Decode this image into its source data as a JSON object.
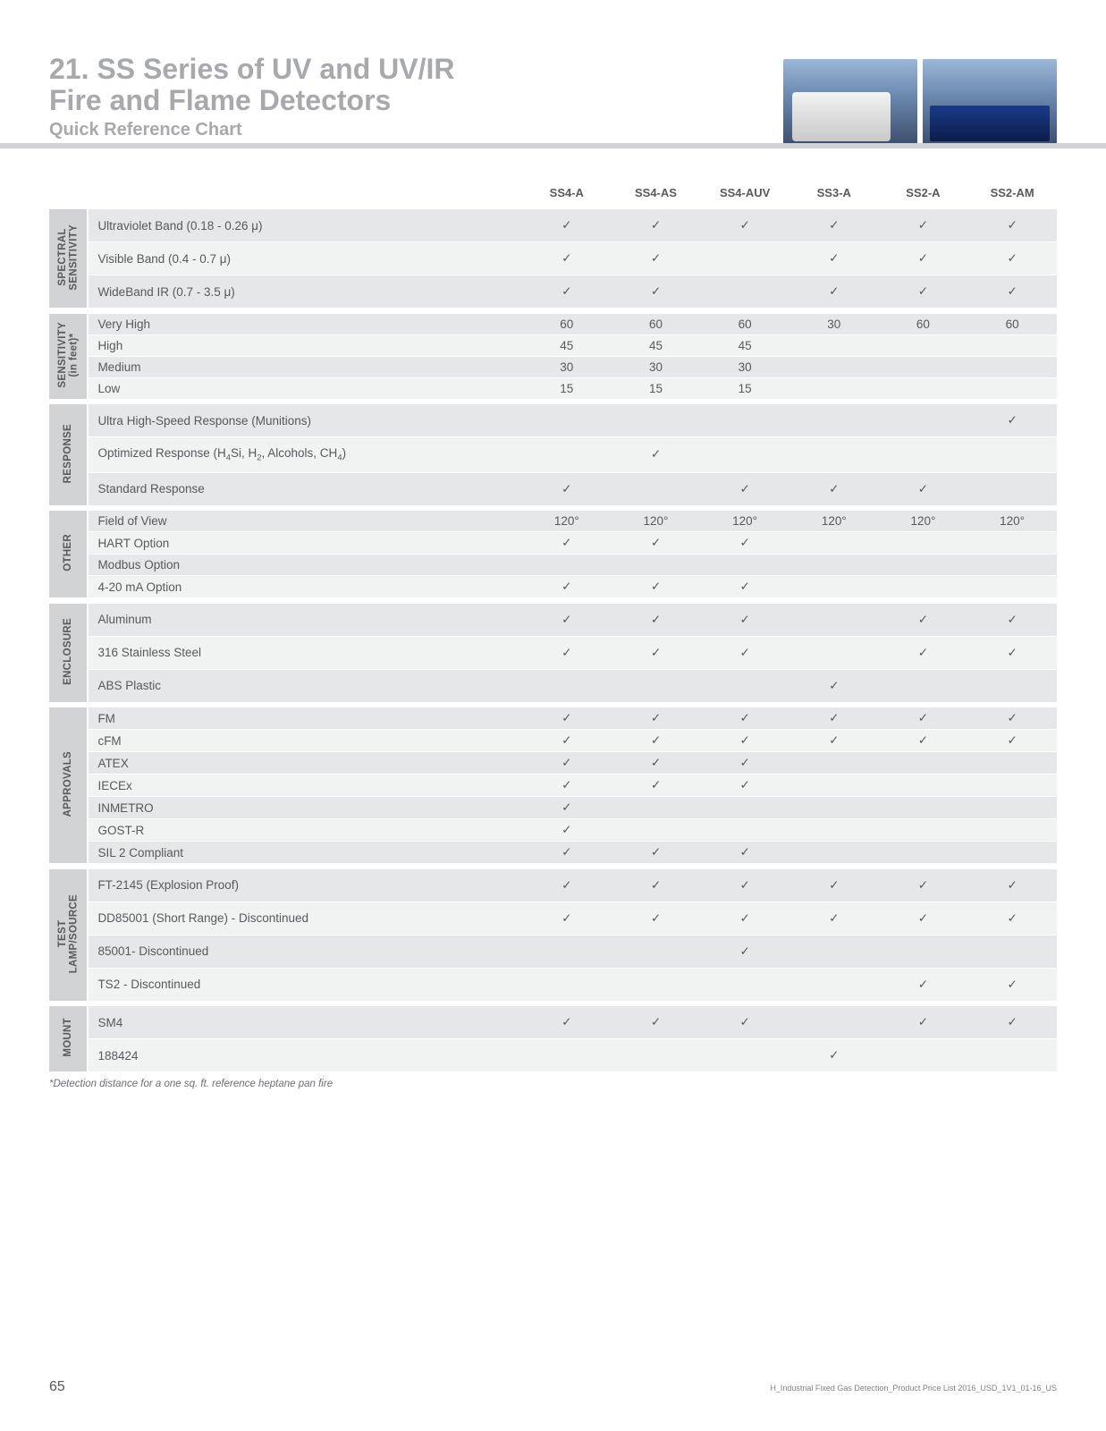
{
  "title_line1": "21. SS Series of UV and UV/IR",
  "title_line2": "Fire and Flame Detectors",
  "subtitle": "Quick Reference Chart",
  "columns": [
    "SS4-A",
    "SS4-AS",
    "SS4-AUV",
    "SS3-A",
    "SS2-A",
    "SS2-AM"
  ],
  "categories": [
    {
      "name": "SPECTRAL SENSITIVITY",
      "label_html": "SPECTRAL<br>SENSITIVITY",
      "rows": [
        {
          "label": "Ultraviolet Band (0.18 - 0.26 μ)",
          "vals": [
            "✓",
            "✓",
            "✓",
            "✓",
            "✓",
            "✓"
          ],
          "tall": true
        },
        {
          "label": "Visible Band (0.4 - 0.7 μ)",
          "vals": [
            "✓",
            "✓",
            "",
            "✓",
            "✓",
            "✓"
          ],
          "tall": true
        },
        {
          "label": "WideBand IR (0.7 - 3.5 μ)",
          "vals": [
            "✓",
            "✓",
            "",
            "✓",
            "✓",
            "✓"
          ],
          "tall": true
        }
      ]
    },
    {
      "name": "SENSITIVITY (in feet)*",
      "label_html": "SENSITIVITY<br>(in feet)*",
      "rows": [
        {
          "label": "Very High",
          "vals": [
            "60",
            "60",
            "60",
            "30",
            "60",
            "60"
          ]
        },
        {
          "label": "High",
          "vals": [
            "45",
            "45",
            "45",
            "",
            "",
            ""
          ]
        },
        {
          "label": "Medium",
          "vals": [
            "30",
            "30",
            "30",
            "",
            "",
            ""
          ]
        },
        {
          "label": "Low",
          "vals": [
            "15",
            "15",
            "15",
            "",
            "",
            ""
          ]
        }
      ]
    },
    {
      "name": "RESPONSE",
      "label_html": "RESPONSE",
      "rows": [
        {
          "label": "Ultra High-Speed Response (Munitions)",
          "vals": [
            "",
            "",
            "",
            "",
            "",
            "✓"
          ],
          "tall": true
        },
        {
          "label_html": "Optimized Response (H<sub>4</sub>Si, H<sub>2</sub>, Alcohols, CH<sub>4</sub>)",
          "vals": [
            "",
            "✓",
            "",
            "",
            "",
            ""
          ],
          "tall": true
        },
        {
          "label": "Standard Response",
          "vals": [
            "✓",
            "",
            "✓",
            "✓",
            "✓",
            ""
          ],
          "tall": true
        }
      ]
    },
    {
      "name": "OTHER",
      "label_html": "OTHER",
      "rows": [
        {
          "label": "Field of View",
          "vals": [
            "120°",
            "120°",
            "120°",
            "120°",
            "120°",
            "120°"
          ]
        },
        {
          "label": "HART Option",
          "vals": [
            "✓",
            "✓",
            "✓",
            "",
            "",
            ""
          ]
        },
        {
          "label": "Modbus Option",
          "vals": [
            "",
            "",
            "",
            "",
            "",
            ""
          ]
        },
        {
          "label": "4-20 mA Option",
          "vals": [
            "✓",
            "✓",
            "✓",
            "",
            "",
            ""
          ]
        }
      ]
    },
    {
      "name": "ENCLOSURE",
      "label_html": "ENCLOSURE",
      "rows": [
        {
          "label": "Aluminum",
          "vals": [
            "✓",
            "✓",
            "✓",
            "",
            "✓",
            "✓"
          ],
          "tall": true
        },
        {
          "label": "316 Stainless Steel",
          "vals": [
            "✓",
            "✓",
            "✓",
            "",
            "✓",
            "✓"
          ],
          "tall": true
        },
        {
          "label": "ABS Plastic",
          "vals": [
            "",
            "",
            "",
            "✓",
            "",
            ""
          ],
          "tall": true
        }
      ]
    },
    {
      "name": "APPROVALS",
      "label_html": "APPROVALS",
      "rows": [
        {
          "label": "FM",
          "vals": [
            "✓",
            "✓",
            "✓",
            "✓",
            "✓",
            "✓"
          ]
        },
        {
          "label": "cFM",
          "vals": [
            "✓",
            "✓",
            "✓",
            "✓",
            "✓",
            "✓"
          ]
        },
        {
          "label": "ATEX",
          "vals": [
            "✓",
            "✓",
            "✓",
            "",
            "",
            ""
          ]
        },
        {
          "label": "IECEx",
          "vals": [
            "✓",
            "✓",
            "✓",
            "",
            "",
            ""
          ]
        },
        {
          "label": "INMETRO",
          "vals": [
            "✓",
            "",
            "",
            "",
            "",
            ""
          ]
        },
        {
          "label": "GOST-R",
          "vals": [
            "✓",
            "",
            "",
            "",
            "",
            ""
          ]
        },
        {
          "label": "SIL 2 Compliant",
          "vals": [
            "✓",
            "✓",
            "✓",
            "",
            "",
            ""
          ]
        }
      ]
    },
    {
      "name": "TEST LAMP/SOURCE",
      "label_html": "TEST<br>LAMP/SOURCE",
      "rows": [
        {
          "label": "FT-2145 (Explosion Proof)",
          "vals": [
            "✓",
            "✓",
            "✓",
            "✓",
            "✓",
            "✓"
          ],
          "tall": true
        },
        {
          "label": "DD85001 (Short Range) - Discontinued",
          "vals": [
            "✓",
            "✓",
            "✓",
            "✓",
            "✓",
            "✓"
          ],
          "tall": true
        },
        {
          "label": "85001- Discontinued",
          "vals": [
            "",
            "",
            "✓",
            "",
            "",
            ""
          ],
          "tall": true
        },
        {
          "label": "TS2 - Discontinued",
          "vals": [
            "",
            "",
            "",
            "",
            "✓",
            "✓"
          ],
          "tall": true
        }
      ]
    },
    {
      "name": "MOUNT",
      "label_html": "MOUNT",
      "rows": [
        {
          "label": "SM4",
          "vals": [
            "✓",
            "✓",
            "✓",
            "",
            "✓",
            "✓"
          ],
          "tall": true
        },
        {
          "label": "188424",
          "vals": [
            "",
            "",
            "",
            "✓",
            "",
            ""
          ],
          "tall": true
        }
      ]
    }
  ],
  "footnote": "*Detection distance for a one sq. ft. reference heptane pan fire",
  "page_number": "65",
  "doc_id": "H_Industrial Fixed Gas Detection_Product Price List 2016_USD_1V1_01-16_US",
  "colors": {
    "title": "#a7a9ac",
    "text": "#58595b",
    "band_light": "#f1f2f2",
    "band_med": "#e6e7e8",
    "cat_bg": "#d1d3d4",
    "stripe": "#e0e1e2"
  }
}
